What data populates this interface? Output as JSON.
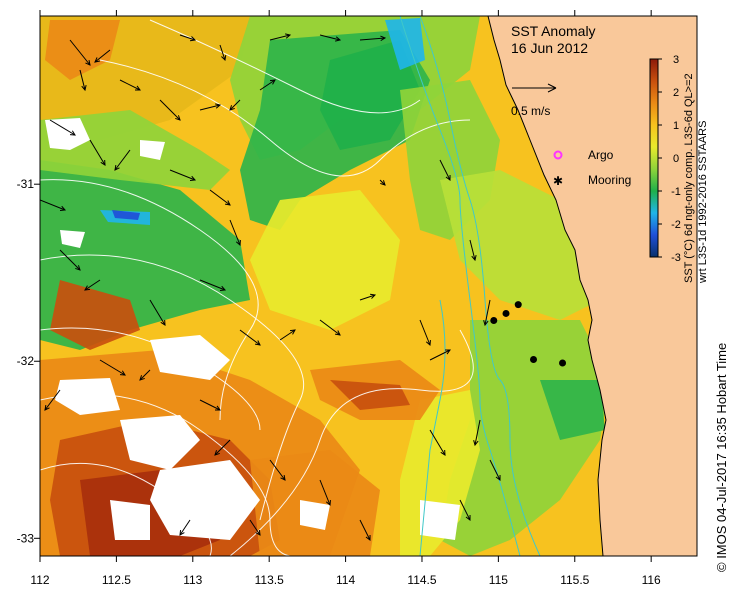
{
  "title": {
    "line1": "SST Anomaly",
    "line2": "16 Jun 2012"
  },
  "axes": {
    "x_ticks": [
      "112",
      "112.5",
      "113",
      "113.5",
      "114",
      "114.5",
      "115",
      "115.5",
      "116"
    ],
    "x_values": [
      112,
      112.5,
      113,
      113.5,
      114,
      114.5,
      115,
      115.5,
      116
    ],
    "x_range": [
      112,
      116.3
    ],
    "y_ticks": [
      "-31",
      "-32",
      "-33"
    ],
    "y_values": [
      -31,
      -32,
      -33
    ],
    "y_range": [
      -33.1,
      -30.05
    ]
  },
  "colorbar": {
    "ticks": [
      "3",
      "2",
      "1",
      "0",
      "-1",
      "-2",
      "-3"
    ],
    "values": [
      3,
      2,
      1,
      0,
      -1,
      -2,
      -3
    ],
    "label_line1": "SST (°C) 6d ngt-only comp. L3S-6d  QL>=2",
    "label_line2": "wrt L3S-1d 1992-2016 SSTAARS",
    "colors": [
      "#08306b",
      "#1f4fd8",
      "#1fb5e8",
      "#1fb04a",
      "#8fd43a",
      "#e8ea2c",
      "#f6c21e",
      "#ea8a16",
      "#c8500e",
      "#8c1a0a"
    ]
  },
  "velocity_scale": {
    "label": "0.5 m/s"
  },
  "legend": {
    "argo_label": "Argo",
    "mooring_label": "Mooring",
    "argo_color": "#ff33ff"
  },
  "moorings": [
    {
      "lon": 114.97,
      "lat": -31.77
    },
    {
      "lon": 115.05,
      "lat": -31.73
    },
    {
      "lon": 115.13,
      "lat": -31.68
    },
    {
      "lon": 115.23,
      "lat": -31.99
    },
    {
      "lon": 115.42,
      "lat": -32.01
    }
  ],
  "credit": "© IMOS 04-Jul-2017 16:35 Hobart Time",
  "colors": {
    "land": "#f9c89a",
    "coast": "#000000",
    "contour": "#ffffff",
    "isobath": "#40c8c8"
  }
}
